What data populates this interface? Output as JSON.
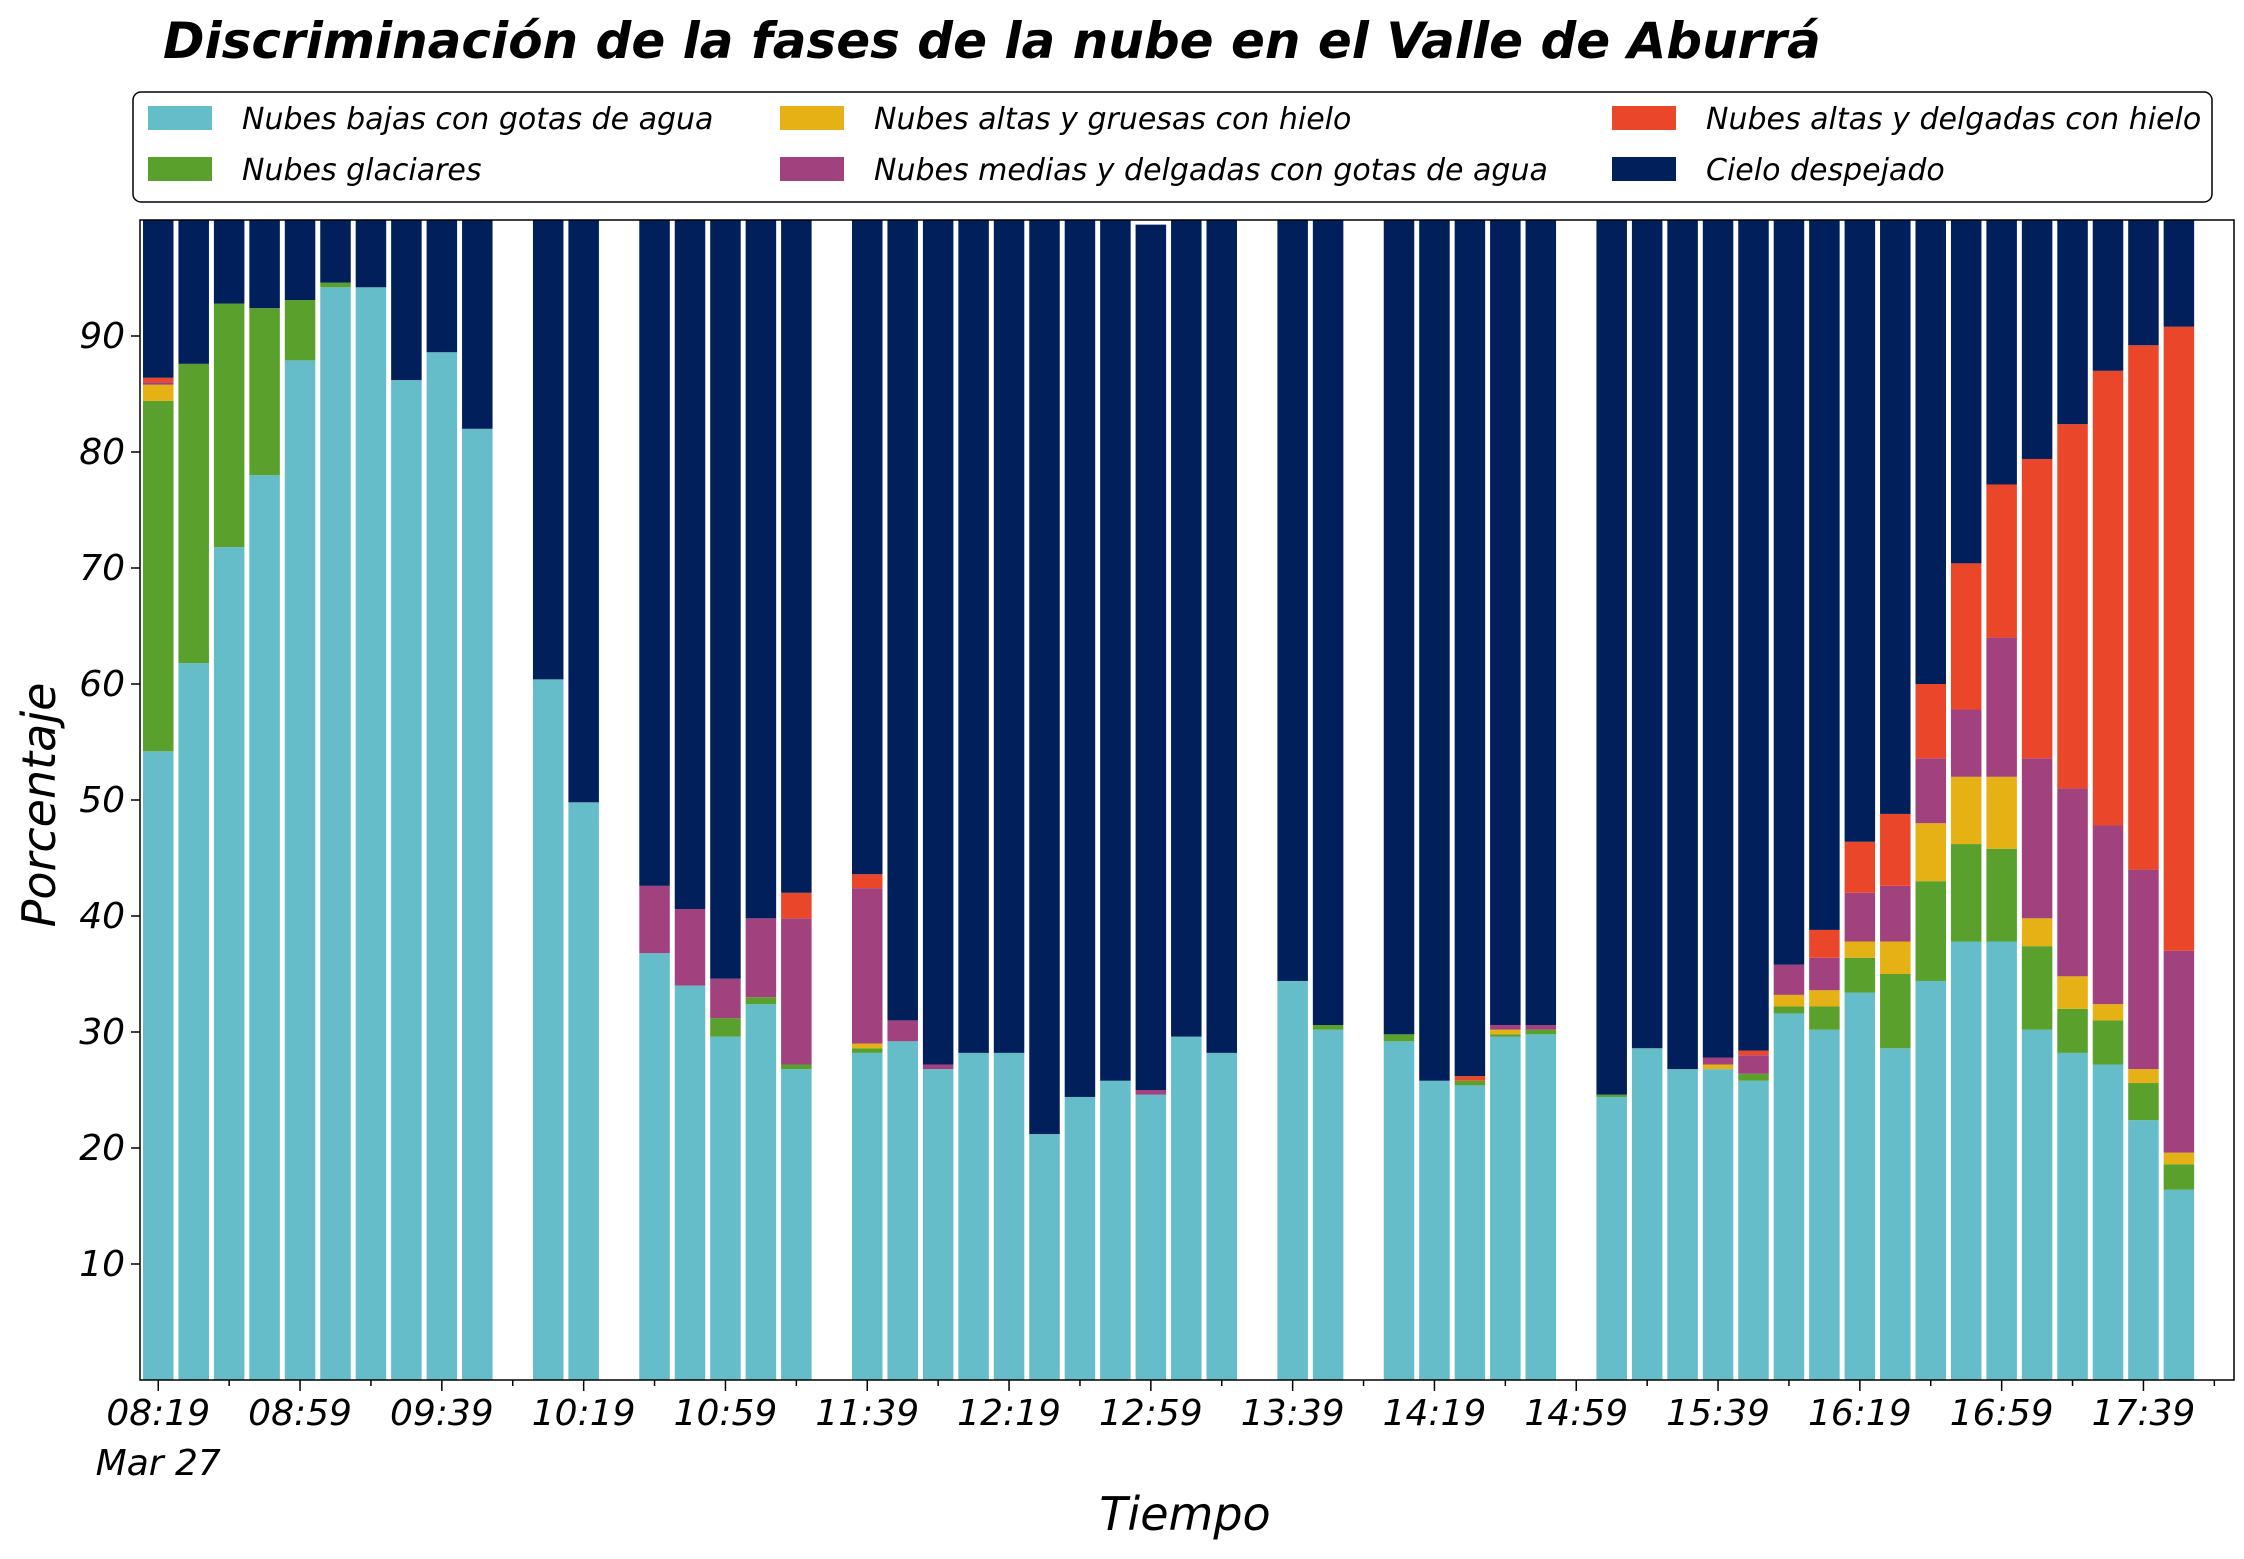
{
  "chart_data": {
    "type": "bar",
    "stacked": true,
    "title": "Discriminación de la fases de la nube en el Valle de Aburrá",
    "xlabel": "Tiempo",
    "ylabel": "Porcentaje",
    "ylim": [
      0,
      100
    ],
    "yticks": [
      10,
      20,
      30,
      40,
      50,
      60,
      70,
      80,
      90
    ],
    "grid": false,
    "legend_position": "top",
    "x_tick_labels": [
      "08:19",
      "08:59",
      "09:39",
      "10:19",
      "10:59",
      "11:39",
      "12:19",
      "12:59",
      "13:39",
      "14:19",
      "14:59",
      "15:39",
      "16:19",
      "16:59",
      "17:39"
    ],
    "x_date_label": "Mar 27",
    "x_start": "08:19",
    "interval_minutes": 10,
    "series": [
      {
        "name": "Nubes bajas con gotas de agua",
        "color": "#64bdc8",
        "values": [
          54.2,
          61.8,
          71.8,
          78,
          87.9,
          94.2,
          94.2,
          86.2,
          88.6,
          82,
          null,
          60.4,
          49.8,
          null,
          36.8,
          34,
          29.6,
          32.4,
          26.8,
          null,
          28.2,
          29.2,
          26.8,
          28.2,
          28.2,
          21.2,
          24.4,
          25.8,
          24.6,
          29.6,
          28.2,
          null,
          34.4,
          30.2,
          null,
          29.2,
          25.8,
          25.4,
          29.6,
          29.8,
          null,
          24.4,
          28.6,
          26.8,
          26.8,
          25.8,
          31.6,
          30.2,
          33.4,
          28.6,
          34.4,
          37.8,
          37.8,
          30.2,
          28.2,
          27.2,
          22.4,
          16.4
        ]
      },
      {
        "name": "Nubes glaciares",
        "color": "#5aa02c",
        "values": [
          30.2,
          25.8,
          21,
          14.4,
          5.2,
          0.4,
          0,
          0,
          0,
          0,
          null,
          0,
          0,
          null,
          0,
          0,
          1.6,
          0.6,
          0.4,
          null,
          0.4,
          0,
          0,
          0,
          0,
          0,
          0,
          0,
          0,
          0,
          0,
          null,
          0,
          0.4,
          null,
          0.6,
          0,
          0.4,
          0.2,
          0.4,
          null,
          0.2,
          0,
          0,
          0,
          0.6,
          0.6,
          2,
          3,
          6.4,
          8.6,
          8.4,
          8,
          7.2,
          3.8,
          3.8,
          3.2,
          2.2
        ]
      },
      {
        "name": "Nubes altas y gruesas con hielo",
        "color": "#e5b115",
        "values": [
          1.4,
          0,
          0,
          0,
          0,
          0,
          0,
          0,
          0,
          0,
          null,
          0,
          0,
          null,
          0,
          0,
          0,
          0,
          0,
          null,
          0.4,
          0,
          0,
          0,
          0,
          0,
          0,
          0,
          0,
          0,
          0,
          null,
          0,
          0,
          null,
          0,
          0,
          0,
          0.4,
          0,
          null,
          0,
          0,
          0,
          0.4,
          0,
          1,
          1.4,
          1.4,
          2.8,
          5,
          5.8,
          6.2,
          2.4,
          2.8,
          1.4,
          1.2,
          1
        ]
      },
      {
        "name": "Nubes medias y delgadas con gotas de agua",
        "color": "#a1417e",
        "values": [
          0.2,
          0,
          0,
          0,
          0,
          0,
          0,
          0,
          0,
          0,
          null,
          0,
          0,
          null,
          5.8,
          6.6,
          3.4,
          6.8,
          12.6,
          null,
          13.4,
          1.8,
          0.4,
          0,
          0,
          0,
          0,
          0,
          0.4,
          0,
          0,
          null,
          0,
          0,
          null,
          0,
          0,
          0,
          0.4,
          0.4,
          null,
          0,
          0,
          0,
          0.6,
          1.6,
          2.6,
          2.8,
          4.2,
          4.8,
          5.6,
          5.8,
          12,
          13.8,
          16.2,
          15.4,
          17.2,
          17.4
        ]
      },
      {
        "name": "Nubes altas y delgadas con hielo",
        "color": "#ea472a",
        "values": [
          0.4,
          0,
          0,
          0,
          0,
          0,
          0,
          0,
          0,
          0,
          null,
          0,
          0,
          null,
          0,
          0,
          0,
          0,
          2.2,
          null,
          1.2,
          0,
          0,
          0,
          0,
          0,
          0,
          0,
          0,
          0,
          0,
          null,
          0,
          0,
          null,
          0,
          0,
          0.4,
          0,
          0,
          null,
          0,
          0,
          0,
          0,
          0.4,
          0,
          2.4,
          4.4,
          6.2,
          6.4,
          12.6,
          13.2,
          25.8,
          31.4,
          39.2,
          45.2,
          53.8
        ]
      },
      {
        "name": "Cielo despejado",
        "color": "#001f5b",
        "values": [
          13.6,
          12.4,
          7.2,
          7.6,
          6.9,
          5.4,
          5.8,
          13.8,
          11.4,
          18,
          null,
          39.6,
          50.2,
          null,
          57.4,
          59.4,
          65.4,
          60.2,
          58,
          null,
          56.4,
          69,
          72.8,
          71.8,
          71.8,
          78.8,
          75.6,
          74.2,
          74.6,
          70.4,
          71.8,
          null,
          65.6,
          69.4,
          null,
          70.2,
          74.2,
          73.8,
          69.4,
          69.4,
          null,
          75.4,
          71.4,
          73.2,
          72.2,
          71.6,
          64.2,
          61.2,
          53.6,
          51.2,
          40,
          29.6,
          22.8,
          20.6,
          17.6,
          13,
          10.8,
          9.2
        ]
      }
    ]
  }
}
